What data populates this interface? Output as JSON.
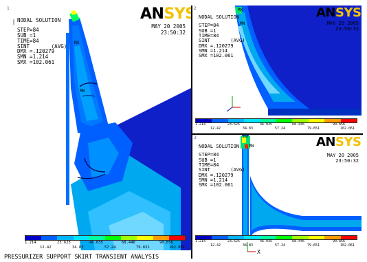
{
  "caption": "PRESSURIZER SUPPORT SKIRT TRANSIENT ANALYSIS",
  "logo": {
    "an": "AN",
    "sys": "SYS"
  },
  "colors": {
    "contour": [
      "#0000c8",
      "#0060ff",
      "#00b4ff",
      "#00e4ff",
      "#00ff9c",
      "#00ff00",
      "#a0ff00",
      "#ffff00",
      "#ff9c00",
      "#ff0000"
    ],
    "background": "#ffffff",
    "logo_accent": "#f2c200"
  },
  "windows": [
    {
      "number": "1",
      "info": [
        "NODAL SOLUTION",
        "STEP=84",
        "SUB =1",
        "TIME=84",
        "SINT       (AVG)",
        "DMX =.120279",
        "SMN =1.214",
        "SMX =102.061"
      ],
      "date": [
        "MAY 20 2005",
        "23:50:32"
      ],
      "markers": [
        "MX",
        "MN"
      ],
      "legend_top": [
        "1.214",
        "23.625",
        "46.035",
        "68.446",
        "90.856"
      ],
      "legend_bottom": [
        "12.42",
        "34.83",
        "57.24",
        "79.651",
        "102.061"
      ]
    },
    {
      "number": "2",
      "info": [
        "NODAL SOLUTION",
        "STEP=84",
        "SUB =1",
        "TIME=84",
        "SINT       (AVG)",
        "DMX =.120279",
        "SMN =1.214",
        "SMX =102.061"
      ],
      "date": [
        "MAY 20 2005",
        "23:50:32"
      ],
      "markers": [
        "MX",
        "MN"
      ],
      "legend_top": [
        "1.214",
        "23.625",
        "46.035",
        "68.446",
        "90.856"
      ],
      "legend_bottom": [
        "12.42",
        "34.83",
        "57.24",
        "79.651",
        "102.061"
      ]
    },
    {
      "number": "3",
      "info": [
        "NODAL SOLUTION",
        "STEP=84",
        "SUB =1",
        "TIME=84",
        "SINT       (AVG)",
        "DMX =.120279",
        "SMN =1.214",
        "SMX =102.061"
      ],
      "date": [
        "MAY 20 2005",
        "23:50:32"
      ],
      "markers": [
        "MX",
        "MN"
      ],
      "legend_top": [
        "1.214",
        "23.625",
        "46.035",
        "68.446",
        "90.856"
      ],
      "legend_bottom": [
        "12.42",
        "34.83",
        "57.24",
        "79.651",
        "102.061"
      ],
      "axis_label": "X"
    }
  ]
}
